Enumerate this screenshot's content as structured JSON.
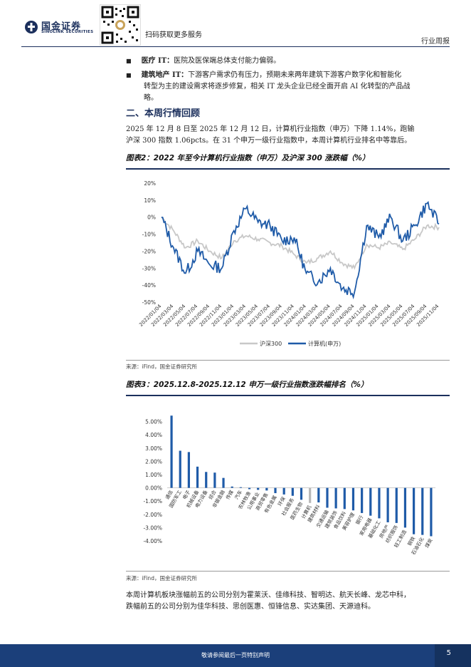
{
  "header": {
    "company_cn": "国金证券",
    "company_en": "SINOLINK SECURITIES",
    "qr_caption": "扫码获取更多服务",
    "doc_type": "行业周报"
  },
  "bullets": [
    {
      "label": "医疗 IT：",
      "text": "医院及医保端总体支付能力偏弱。"
    },
    {
      "label": "建筑地产 IT：",
      "text": "下游客户需求仍有压力，预期未来两年建筑下游客户数字化和智能化",
      "text2": "转型为主的建设需求将逐步修复，相关 IT 龙头企业已经全面开启 AI 化转型的产品战",
      "text3": "略。"
    }
  ],
  "section": {
    "title": "二、本周行情回顾"
  },
  "intro": {
    "line1": "2025 年 12 月 8 日至 2025 年 12 月 12 日，计算机行业指数（申万）下降 1.14%，跑输",
    "line2": "沪深 300 指数 1.06pcts。在 31 个申万一级行业指数中，本周计算机行业排名中等靠后。"
  },
  "figure2": {
    "title": "图表2：2022 年至今计算机行业指数（申万）及沪深 300 涨跌幅（%）",
    "source": "来源：iFind，国金证券研究所"
  },
  "figure3": {
    "title": "图表3：2025.12.8-2025.12.12 申万一级行业指数涨跌幅排名（%）",
    "source": "来源：iFind，国金证券研究所"
  },
  "summary": {
    "line1": "本周计算机板块涨幅前五的公司分别为霍莱沃、佳缘科技、智明达、航天长峰、龙芯中科，",
    "line2": "跌幅前五的公司分别为佳华科技、思创医惠、恒锋信息、实达集团、天源迪科。"
  },
  "footer": {
    "text": "敬请参阅最后一页特别声明",
    "page": "5"
  },
  "colors": {
    "brand": "#1b2f5c",
    "series_it": "#1f5ba8",
    "series_hs300": "#c8c8c8",
    "bar": "#1f5ba8",
    "bar_highlight": "#b8b8b8"
  },
  "chart_data": [
    {
      "type": "line",
      "title": "",
      "x": [
        "2022/01/04",
        "2022/03/04",
        "2022/05/04",
        "2022/07/04",
        "2022/09/04",
        "2022/11/04",
        "2023/01/04",
        "2023/03/04",
        "2023/05/04",
        "2023/07/04",
        "2023/09/04",
        "2023/11/04",
        "2024/01/04",
        "2024/03/04",
        "2024/05/04",
        "2024/07/04",
        "2024/09/04",
        "2024/11/04",
        "2025/01/04",
        "2025/03/04",
        "2025/05/04",
        "2025/07/04",
        "2025/09/04",
        "2025/11/04"
      ],
      "ylim": [
        -50,
        20
      ],
      "yticks": [
        "20%",
        "10%",
        "0%",
        "-10%",
        "-20%",
        "-30%",
        "-40%",
        "-50%"
      ],
      "legend": "bottom-center",
      "series": [
        {
          "name": "沪深300",
          "values": [
            0,
            -8,
            -18,
            -14,
            -20,
            -24,
            -14,
            -11,
            -13,
            -15,
            -17,
            -22,
            -27,
            -24,
            -20,
            -27,
            -30,
            -16,
            -18,
            -15,
            -19,
            -13,
            -5,
            -6
          ]
        },
        {
          "name": "计算机(申万)",
          "values": [
            0,
            -18,
            -33,
            -20,
            -28,
            -30,
            -8,
            5,
            -3,
            -5,
            -14,
            -12,
            -33,
            -38,
            -30,
            -42,
            -44,
            -5,
            -12,
            0,
            -14,
            -5,
            8,
            -4
          ]
        }
      ]
    },
    {
      "type": "bar",
      "title": "",
      "categories": [
        "通信",
        "国防军工",
        "电子",
        "机械设备",
        "电力设备",
        "综合",
        "非银金融",
        "传媒",
        "汽车",
        "农林牧渔",
        "公用事业",
        "商贸零售",
        "有色金属",
        "环保",
        "社会服务",
        "医药生物",
        "计算机",
        "建筑材料",
        "交通运输",
        "建筑装饰",
        "食品饮料",
        "美容护理",
        "银行",
        "家用电器",
        "基础化工",
        "房地产",
        "纺织服饰",
        "轻工制造",
        "钢铁",
        "石油石化",
        "煤炭"
      ],
      "values": [
        5.45,
        2.8,
        2.7,
        1.6,
        1.2,
        1.15,
        0.75,
        0.1,
        0.05,
        -0.1,
        -0.15,
        -0.2,
        -0.4,
        -0.5,
        -0.6,
        -0.9,
        -1.14,
        -1.1,
        -1.5,
        -1.55,
        -1.6,
        -1.7,
        -1.9,
        -2.1,
        -2.3,
        -2.6,
        -2.65,
        -3.0,
        -3.5,
        -3.55,
        -3.65
      ],
      "highlight": "计算机",
      "ylim": [
        -4,
        6
      ],
      "yticks": [
        "5.00%",
        "4.00%",
        "3.00%",
        "2.00%",
        "1.00%",
        "0.00%",
        "-1.00%",
        "-2.00%",
        "-3.00%",
        "-4.00%"
      ]
    }
  ]
}
